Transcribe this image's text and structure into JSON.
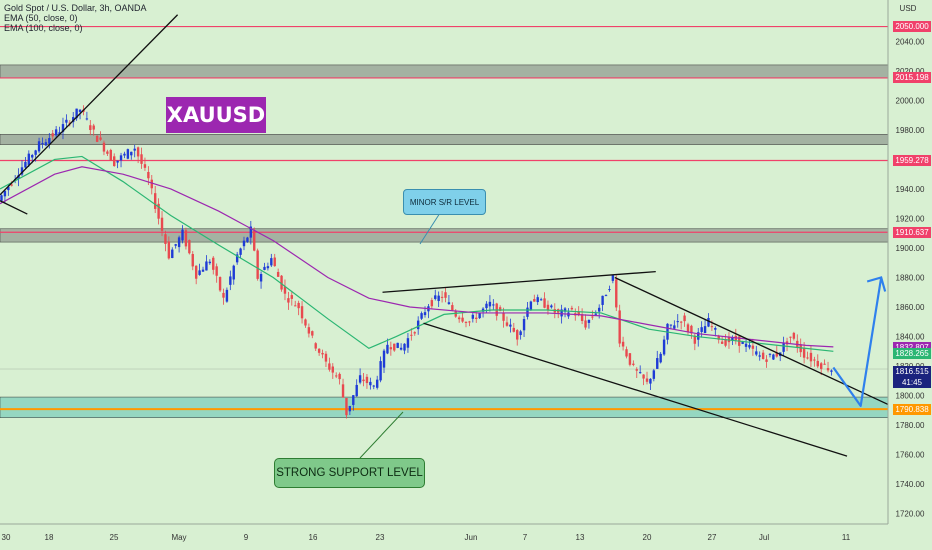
{
  "legend": {
    "symbol": "Gold Spot / U.S. Dollar, 3h, OANDA",
    "ema50": "EMA (50, close, 0)",
    "ema100": "EMA (100, close, 0)"
  },
  "brand_label": "XAUUSD",
  "annotations": {
    "minor": "MINOR S/R LEVEL",
    "strong": "STRONG SUPPORT LEVEL"
  },
  "axis": {
    "currency": "USD",
    "countdown": "41:45"
  },
  "colors": {
    "up": "#1e3bd6",
    "down": "#e8494f",
    "ema50": "#2bb673",
    "ema100": "#9c27b0",
    "level_red": "#f0416a",
    "forecast": "#2f80ed",
    "support_zone": "#5fc3b3",
    "support_line": "#ff9800",
    "gray_zone": "#7a7f7a"
  },
  "chart_data": {
    "type": "line",
    "title": "Gold Spot / U.S. Dollar, 3h, OANDA",
    "y_unit": "USD",
    "ylim": [
      1713,
      2068
    ],
    "y_ticks": [
      1720,
      1740,
      1760,
      1780,
      1800,
      1820,
      1840,
      1860,
      1880,
      1900,
      1920,
      1940,
      1960,
      1980,
      2000,
      2020,
      2040
    ],
    "x_ticks": [
      "30",
      "18",
      "25",
      "May",
      "9",
      "16",
      "23",
      "Jun",
      "7",
      "13",
      "20",
      "27",
      "Jul",
      "11"
    ],
    "price_path": [
      [
        0,
        1932
      ],
      [
        3,
        1952
      ],
      [
        6,
        1970
      ],
      [
        9,
        1980
      ],
      [
        12,
        1994
      ],
      [
        14,
        1978
      ],
      [
        17,
        1958
      ],
      [
        20,
        1968
      ],
      [
        22,
        1946
      ],
      [
        24,
        1912
      ],
      [
        25,
        1895
      ],
      [
        27,
        1910
      ],
      [
        29,
        1882
      ],
      [
        31,
        1892
      ],
      [
        33,
        1865
      ],
      [
        35,
        1895
      ],
      [
        37,
        1912
      ],
      [
        38,
        1880
      ],
      [
        40,
        1893
      ],
      [
        42,
        1868
      ],
      [
        44,
        1860
      ],
      [
        46,
        1838
      ],
      [
        48,
        1822
      ],
      [
        50,
        1810
      ],
      [
        51,
        1788
      ],
      [
        53,
        1812
      ],
      [
        55,
        1806
      ],
      [
        57,
        1835
      ],
      [
        59,
        1832
      ],
      [
        61,
        1845
      ],
      [
        63,
        1862
      ],
      [
        65,
        1868
      ],
      [
        67,
        1855
      ],
      [
        69,
        1850
      ],
      [
        72,
        1862
      ],
      [
        74,
        1852
      ],
      [
        76,
        1840
      ],
      [
        78,
        1866
      ],
      [
        80,
        1862
      ],
      [
        82,
        1855
      ],
      [
        84,
        1858
      ],
      [
        86,
        1848
      ],
      [
        88,
        1860
      ],
      [
        90,
        1880
      ],
      [
        91,
        1838
      ],
      [
        93,
        1818
      ],
      [
        95,
        1808
      ],
      [
        97,
        1828
      ],
      [
        98,
        1846
      ],
      [
        100,
        1852
      ],
      [
        102,
        1838
      ],
      [
        104,
        1850
      ],
      [
        106,
        1836
      ],
      [
        108,
        1838
      ],
      [
        110,
        1832
      ],
      [
        112,
        1825
      ],
      [
        114,
        1828
      ],
      [
        116,
        1840
      ],
      [
        118,
        1828
      ],
      [
        120,
        1822
      ],
      [
        122,
        1818
      ]
    ],
    "series": [
      {
        "name": "EMA (50, close, 0)",
        "values": [
          [
            0,
            1940
          ],
          [
            8,
            1960
          ],
          [
            12,
            1962
          ],
          [
            18,
            1945
          ],
          [
            25,
            1922
          ],
          [
            32,
            1902
          ],
          [
            40,
            1880
          ],
          [
            48,
            1852
          ],
          [
            54,
            1832
          ],
          [
            58,
            1840
          ],
          [
            65,
            1855
          ],
          [
            72,
            1858
          ],
          [
            80,
            1858
          ],
          [
            88,
            1856
          ],
          [
            95,
            1845
          ],
          [
            102,
            1840
          ],
          [
            110,
            1836
          ],
          [
            118,
            1832
          ],
          [
            122,
            1830
          ]
        ]
      },
      {
        "name": "EMA (100, close, 0)",
        "values": [
          [
            0,
            1930
          ],
          [
            8,
            1950
          ],
          [
            12,
            1955
          ],
          [
            18,
            1950
          ],
          [
            25,
            1940
          ],
          [
            32,
            1925
          ],
          [
            40,
            1905
          ],
          [
            48,
            1880
          ],
          [
            54,
            1866
          ],
          [
            60,
            1860
          ],
          [
            70,
            1856
          ],
          [
            80,
            1856
          ],
          [
            88,
            1854
          ],
          [
            95,
            1848
          ],
          [
            102,
            1842
          ],
          [
            110,
            1838
          ],
          [
            118,
            1834
          ],
          [
            122,
            1833
          ]
        ]
      }
    ],
    "levels": [
      {
        "price": 2050.0,
        "label": "2050.000",
        "kind": "resistance"
      },
      {
        "price": 2015.198,
        "label": "2015.198",
        "kind": "resistance"
      },
      {
        "price": 1959.278,
        "label": "1959.278",
        "kind": "resistance"
      },
      {
        "price": 1910.637,
        "label": "1910.637",
        "kind": "resistance"
      },
      {
        "price": 1790.838,
        "label": "1790.838",
        "kind": "support"
      }
    ],
    "price_tags": [
      {
        "price": 1832.807,
        "label": "1832.807",
        "color": "#9c27b0"
      },
      {
        "price": 1828.265,
        "label": "1828.265",
        "color": "#2bb673"
      },
      {
        "price": 1816.515,
        "label": "1816.515",
        "color": "#1a237e"
      }
    ],
    "zones": [
      {
        "from": 2015,
        "to": 2024,
        "kind": "gray"
      },
      {
        "from": 1970,
        "to": 1977,
        "kind": "gray"
      },
      {
        "from": 1904,
        "to": 1913,
        "kind": "gray"
      },
      {
        "from": 1785,
        "to": 1799,
        "kind": "support"
      }
    ],
    "trendlines": [
      {
        "name": "upper-channel",
        "from": [
          56,
          1870
        ],
        "to": [
          96,
          1884
        ]
      },
      {
        "name": "lower-channel",
        "from": [
          62,
          1849
        ],
        "to": [
          124,
          1759
        ]
      },
      {
        "name": "descending-resistance",
        "from": [
          90,
          1880
        ],
        "to": [
          130,
          1794
        ]
      },
      {
        "name": "initial-uptrend",
        "from": [
          0,
          1936
        ],
        "to": [
          26,
          2058
        ]
      },
      {
        "name": "initial-down",
        "from": [
          0,
          1932
        ],
        "to": [
          4,
          1923
        ]
      }
    ],
    "forecast_path": [
      [
        122,
        1819
      ],
      [
        126,
        1793
      ],
      [
        129,
        1880
      ]
    ]
  }
}
